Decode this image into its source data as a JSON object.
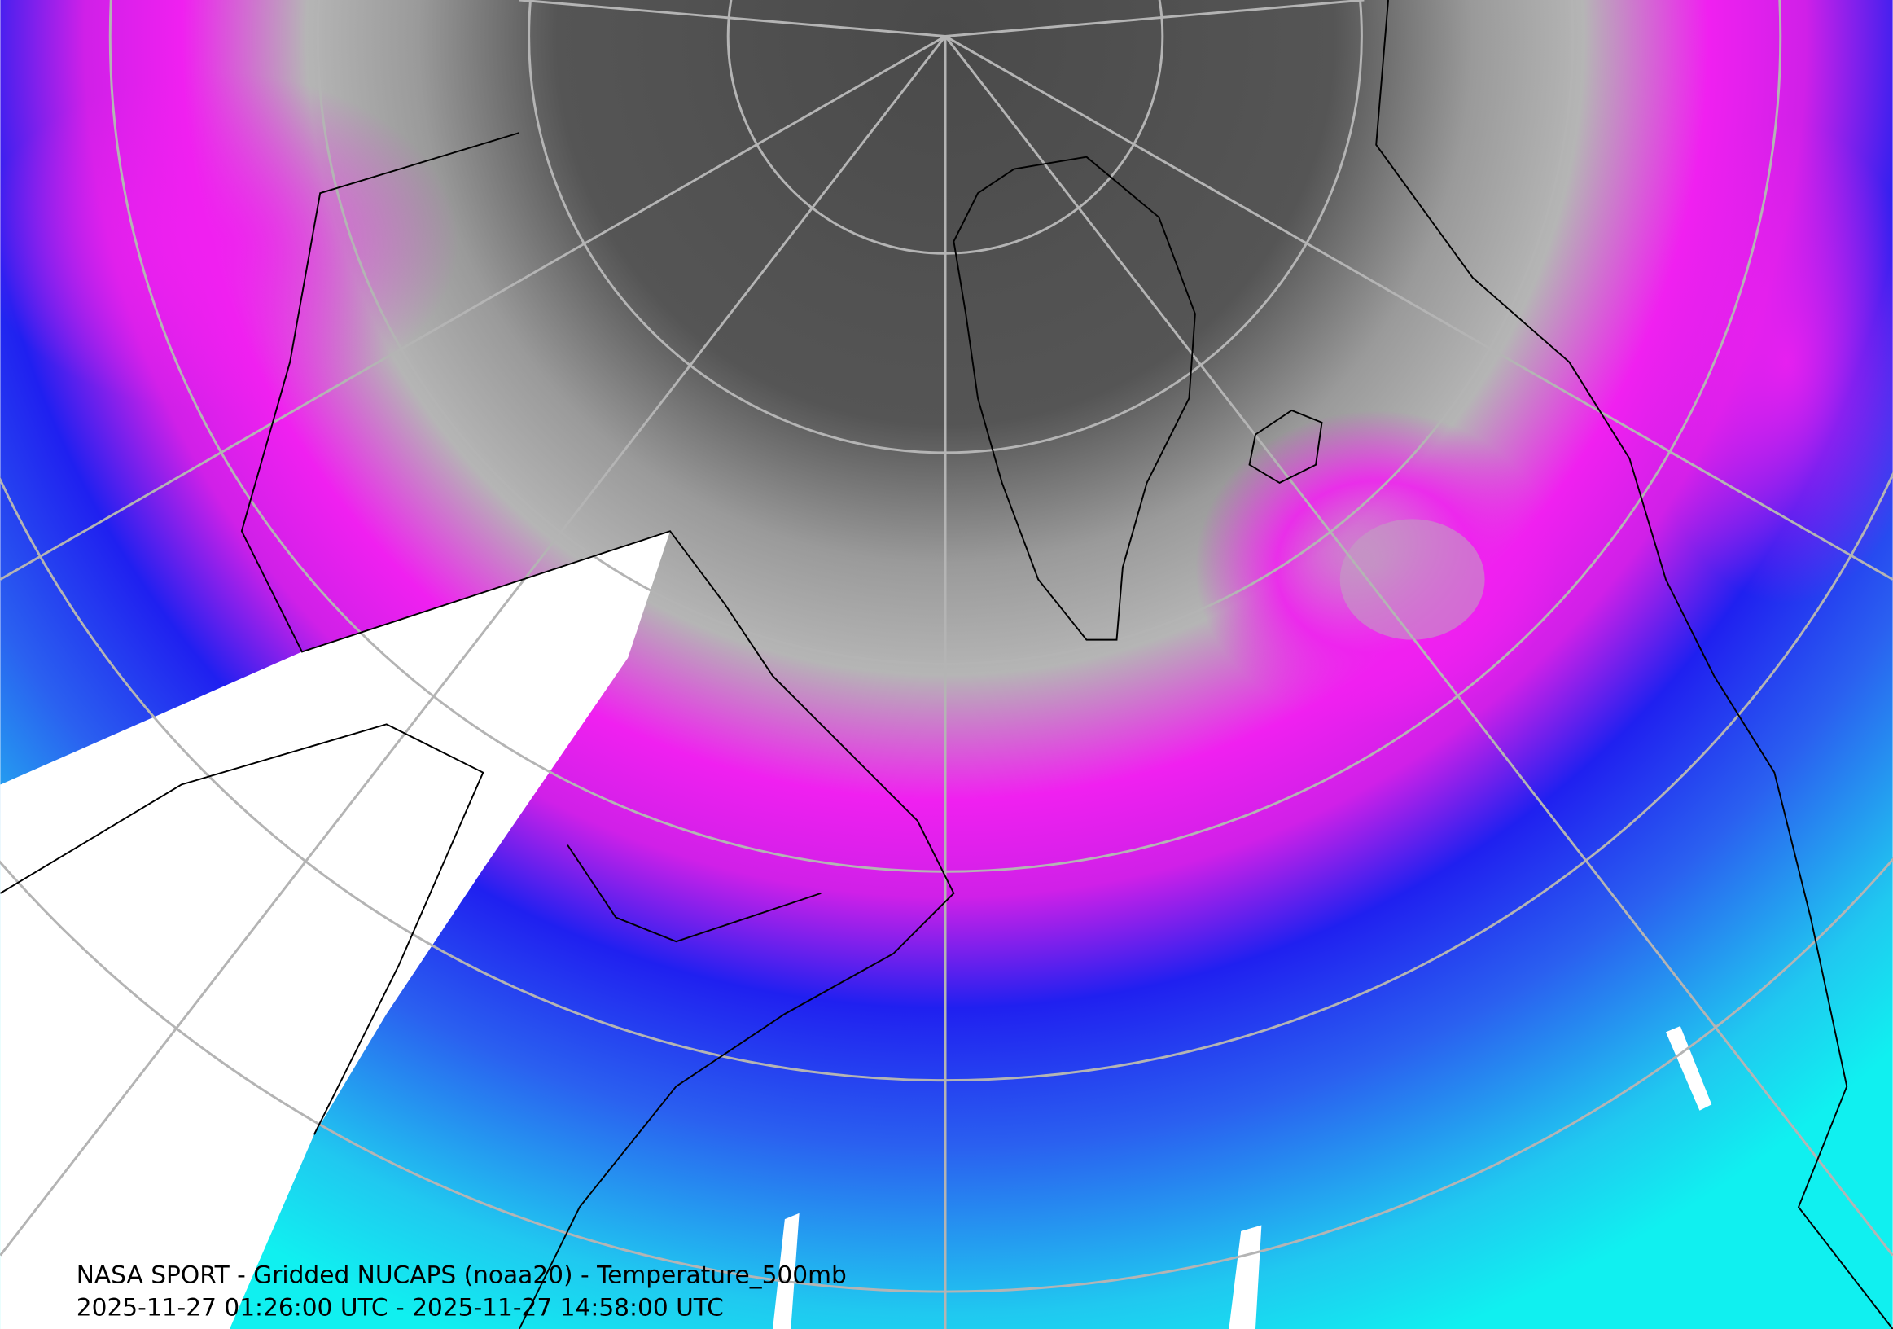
{
  "caption": {
    "title": "NASA SPORT - Gridded NUCAPS (noaa20) - Temperature_500mb",
    "time_range": "2025-11-27 01:26:00 UTC - 2025-11-27 14:58:00 UTC"
  }
}
